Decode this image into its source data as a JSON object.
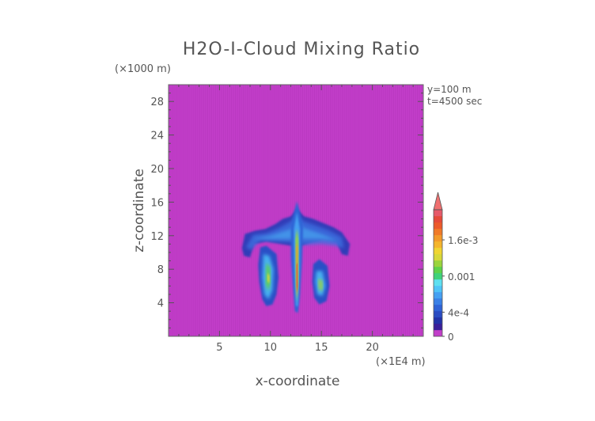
{
  "chart_data": {
    "type": "heatmap",
    "title": "H2O-I-Cloud Mixing Ratio",
    "xlabel": "x-coordinate",
    "ylabel": "z-coordinate",
    "x_unit": "(×1E4 m)",
    "y_unit": "(×1000 m)",
    "xlim": [
      0,
      25
    ],
    "ylim": [
      0,
      30
    ],
    "x_ticks": [
      5,
      10,
      15,
      20
    ],
    "y_ticks": [
      4,
      8,
      12,
      16,
      20,
      24,
      28
    ],
    "annotations": [
      "y=100 m",
      "t=4500 sec"
    ],
    "colorbar": {
      "range": [
        0,
        0.0021
      ],
      "tick_values": [
        0,
        0.0004,
        0.001,
        0.0016
      ],
      "tick_labels": [
        "0",
        "4e-4",
        "0.001",
        "1.6e-3"
      ],
      "extend": "max",
      "colors": [
        "#c23ec9",
        "#3a1f9a",
        "#2233a8",
        "#2a4cc2",
        "#2f63d6",
        "#3a80e6",
        "#45a0f2",
        "#4fc4f7",
        "#5ee0f0",
        "#3fd27a",
        "#5ed24a",
        "#9ad43c",
        "#d7d83a",
        "#f0d532",
        "#f4b52c",
        "#f29a2a",
        "#f07a28",
        "#ec5a2a",
        "#e54a3a",
        "#e65a6a"
      ],
      "extend_color": "#ef7070"
    },
    "field": {
      "background": "#c23ec9",
      "cloud_regions": [
        {
          "name": "anvil",
          "x": [
            7.2,
            17.8
          ],
          "z": [
            9.5,
            14.5
          ]
        },
        {
          "name": "core-updraft",
          "x": [
            12.3,
            12.9
          ],
          "z": [
            2.8,
            16.0
          ],
          "peak": 0.0018
        },
        {
          "name": "left-column",
          "x": [
            9.0,
            10.6
          ],
          "z": [
            3.5,
            10.5
          ],
          "peak": 0.0012
        },
        {
          "name": "right-column",
          "x": [
            14.2,
            15.8
          ],
          "z": [
            3.8,
            8.5
          ],
          "peak": 0.0011
        }
      ]
    }
  }
}
